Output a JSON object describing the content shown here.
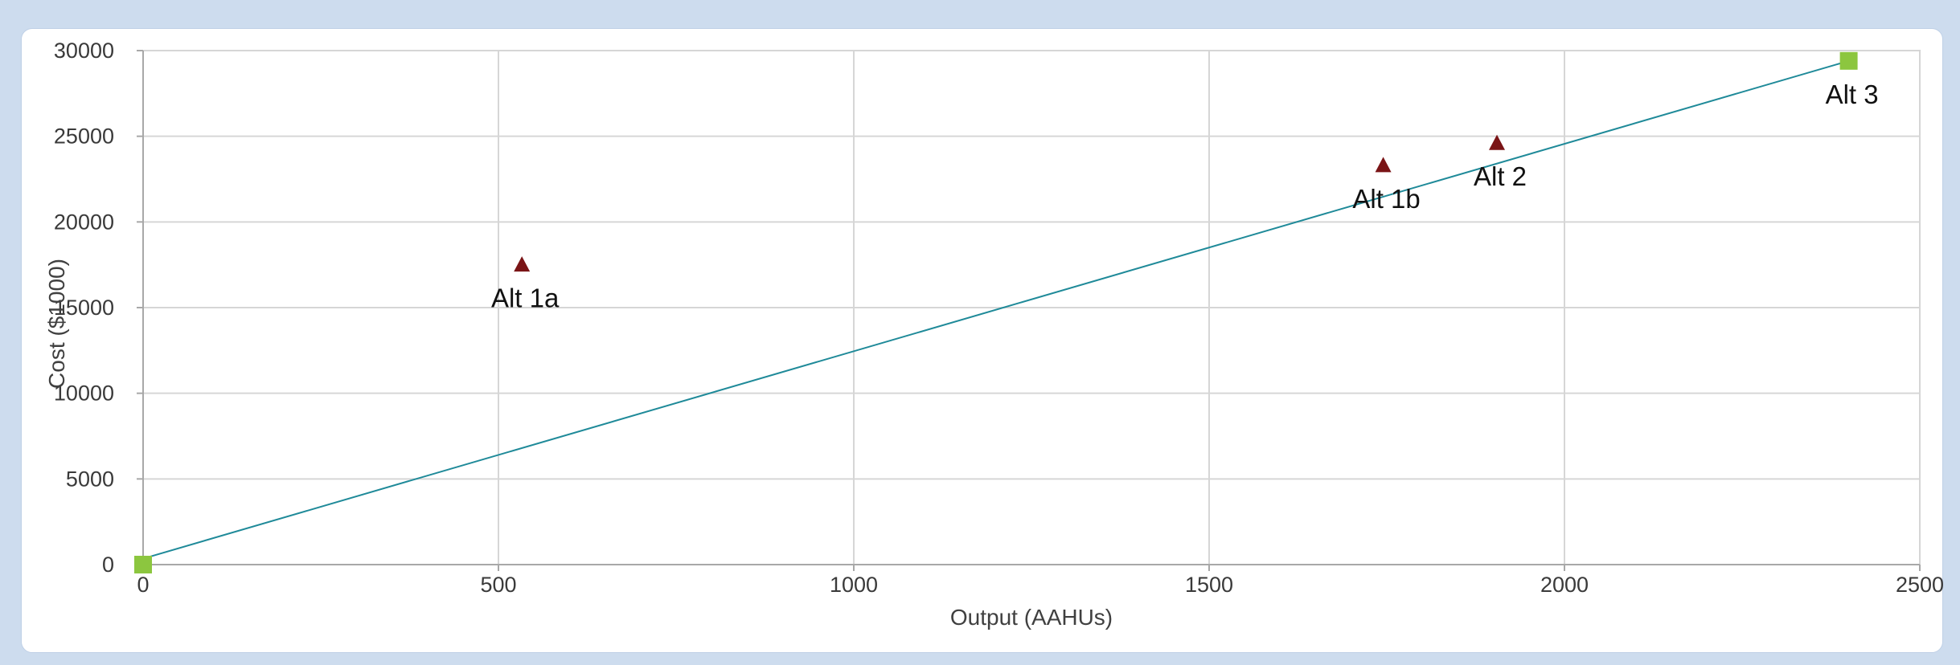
{
  "chart_data": {
    "type": "scatter",
    "title": "",
    "xlabel": "Output (AAHUs)",
    "ylabel": "Cost ($1000)",
    "xlim": [
      0,
      2500
    ],
    "ylim": [
      0,
      30000
    ],
    "xticks": [
      0,
      500,
      1000,
      1500,
      2000,
      2500
    ],
    "yticks": [
      0,
      5000,
      10000,
      15000,
      20000,
      25000,
      30000
    ],
    "grid": true,
    "series": [
      {
        "marker": "triangle",
        "color": "#7a1416",
        "points": [
          {
            "label": "Alt 1a",
            "x": 533,
            "y": 17500
          },
          {
            "label": "Alt 1b",
            "x": 1745,
            "y": 23300
          },
          {
            "label": "Alt 2",
            "x": 1905,
            "y": 24600
          }
        ]
      },
      {
        "marker": "square",
        "color": "#8cc63f",
        "points": [
          {
            "label": "",
            "x": 0,
            "y": 0
          },
          {
            "label": "Alt 3",
            "x": 2400,
            "y": 29400
          }
        ]
      }
    ],
    "lines": [
      {
        "color": "#1f8a99",
        "x": [
          0,
          2400
        ],
        "y": [
          350,
          29400
        ]
      }
    ]
  }
}
